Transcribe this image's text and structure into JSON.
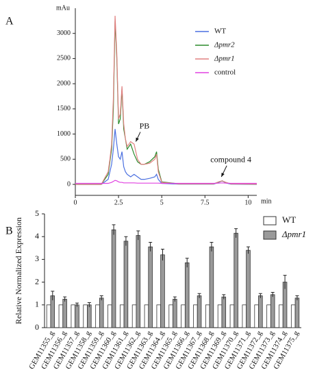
{
  "panels": [
    "A",
    "B"
  ],
  "chart_data": [
    {
      "type": "line",
      "ylabel": "mAu",
      "xlabel": "min",
      "x": [
        0,
        1.5,
        1.9,
        2.0,
        2.1,
        2.2,
        2.3,
        2.4,
        2.5,
        2.6,
        2.7,
        2.8,
        2.9,
        3.0,
        3.2,
        3.4,
        3.6,
        3.8,
        4.0,
        4.3,
        4.6,
        4.7,
        4.8,
        5.0,
        6,
        8.0,
        8.3,
        8.5,
        8.7,
        9,
        10.5
      ],
      "series": [
        {
          "name": "WT",
          "color": "#4a6fe0",
          "italic": false,
          "values": [
            0,
            0,
            100,
            250,
            400,
            700,
            1100,
            800,
            550,
            500,
            650,
            350,
            250,
            200,
            150,
            200,
            150,
            100,
            100,
            120,
            150,
            200,
            100,
            20,
            5,
            5,
            40,
            70,
            30,
            5,
            0
          ]
        },
        {
          "name": "Δpmr2",
          "color": "#2a8a2a",
          "italic": true,
          "values": [
            0,
            0,
            200,
            450,
            700,
            1500,
            3250,
            2500,
            1200,
            1300,
            1900,
            1100,
            900,
            700,
            800,
            600,
            450,
            400,
            400,
            450,
            550,
            650,
            300,
            50,
            10,
            10,
            50,
            70,
            40,
            10,
            5
          ]
        },
        {
          "name": "Δpmr1",
          "color": "#e08080",
          "italic": true,
          "values": [
            0,
            0,
            250,
            500,
            800,
            1700,
            3350,
            2600,
            1300,
            1400,
            1950,
            1200,
            900,
            750,
            850,
            800,
            500,
            400,
            400,
            420,
            500,
            600,
            250,
            40,
            10,
            10,
            50,
            70,
            40,
            10,
            5
          ]
        },
        {
          "name": "control",
          "color": "#e040e0",
          "italic": false,
          "values": [
            20,
            20,
            20,
            30,
            40,
            60,
            80,
            70,
            50,
            40,
            40,
            30,
            30,
            30,
            30,
            30,
            25,
            25,
            25,
            25,
            25,
            25,
            25,
            20,
            20,
            20,
            25,
            30,
            25,
            20,
            20
          ]
        }
      ],
      "xlim": [
        0,
        10.5
      ],
      "xticks": [
        0,
        2.5,
        5,
        7.5,
        10
      ],
      "ylim": [
        0,
        3500
      ],
      "yticks": [
        0,
        500,
        1000,
        1500,
        2000,
        2500,
        3000
      ],
      "annotations": [
        {
          "text": "PB",
          "xy": [
            3.5,
            850
          ],
          "xytext": [
            4.0,
            1150
          ]
        },
        {
          "text": "compound 4",
          "xy": [
            8.45,
            150
          ],
          "xytext": [
            9.0,
            480
          ]
        }
      ]
    },
    {
      "type": "bar",
      "ylabel": "Relative Normalized Expression",
      "categories": [
        "GEM11355_g",
        "GEM11356_g",
        "GEM11357_g",
        "GEM11358_g",
        "GEM11359_g",
        "GEM11360_g",
        "GEM11361_g",
        "GEM11362_g",
        "GEM11363_g",
        "GEM11364_g",
        "GEM11365_g",
        "GEM11366_g",
        "GEM11367_g",
        "GEM11368_g",
        "GEM11369_g",
        "GEM11370_g",
        "GEM11371_g",
        "GEM11372_g",
        "GEM11373_g",
        "GEM11374_g",
        "GEM11375_g"
      ],
      "series": [
        {
          "name": "WT",
          "color": "#ffffff",
          "italic": false,
          "values": [
            1,
            1,
            1,
            1,
            1,
            1,
            1,
            1,
            1,
            1,
            1,
            1,
            1,
            1,
            1,
            1,
            1,
            1,
            1,
            1,
            1
          ]
        },
        {
          "name": "Δpmr1",
          "color": "#9a9a9a",
          "italic": true,
          "values": [
            1.4,
            1.25,
            1.0,
            1.0,
            1.3,
            4.3,
            3.8,
            4.05,
            3.55,
            3.2,
            1.25,
            2.85,
            1.4,
            3.55,
            1.35,
            4.15,
            3.4,
            1.4,
            1.45,
            2.0,
            1.3
          ],
          "errors": [
            0.2,
            0.1,
            0.08,
            0.1,
            0.1,
            0.22,
            0.2,
            0.2,
            0.2,
            0.25,
            0.1,
            0.2,
            0.1,
            0.2,
            0.1,
            0.2,
            0.15,
            0.1,
            0.1,
            0.3,
            0.1
          ]
        }
      ],
      "ylim": [
        0,
        5
      ],
      "yticks": [
        0,
        1,
        2,
        3,
        4,
        5
      ]
    }
  ]
}
